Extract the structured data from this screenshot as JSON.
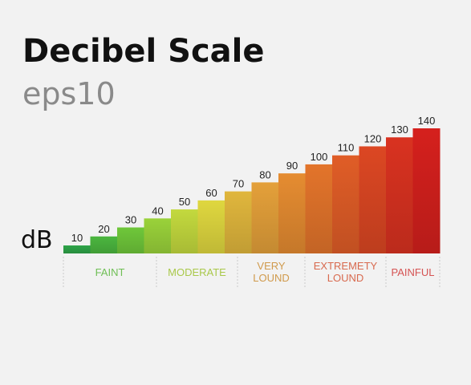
{
  "header": {
    "title": "Decibel Scale",
    "subtitle": "eps10",
    "unit_label": "dB"
  },
  "chart_data": {
    "type": "bar",
    "title": "Decibel Scale",
    "ylabel": "dB",
    "ylim": [
      0,
      140
    ],
    "categories": [
      "10",
      "20",
      "30",
      "40",
      "50",
      "60",
      "70",
      "80",
      "90",
      "100",
      "110",
      "120",
      "130",
      "140"
    ],
    "values": [
      10,
      20,
      30,
      40,
      50,
      60,
      70,
      80,
      90,
      100,
      110,
      120,
      130,
      140
    ],
    "bar_colors": [
      "#2ea449",
      "#4bb63f",
      "#6fc73a",
      "#9ad23a",
      "#c3d93e",
      "#dfd73f",
      "#e0b63d",
      "#e4a03a",
      "#e58c31",
      "#e3742b",
      "#e05d27",
      "#dc4723",
      "#d93220",
      "#d5201d"
    ],
    "groups": [
      {
        "lines": [
          "FAINT"
        ],
        "color": "#6fbf55"
      },
      {
        "lines": [
          "MODERATE"
        ],
        "color": "#a9c84a"
      },
      {
        "lines": [
          "VERY",
          "LOUND"
        ],
        "color": "#d09a4c"
      },
      {
        "lines": [
          "EXTREMETY",
          "LOUND"
        ],
        "color": "#d86a4f"
      },
      {
        "lines": [
          "PAINFUL"
        ],
        "color": "#d55353"
      }
    ],
    "grid": false,
    "legend": "none"
  }
}
